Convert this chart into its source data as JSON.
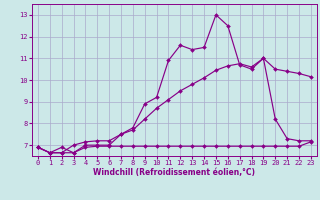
{
  "background_color": "#cce8e8",
  "grid_color": "#aaaacc",
  "line_color": "#880088",
  "xlabel": "Windchill (Refroidissement éolien,°C)",
  "ylim": [
    6.5,
    13.5
  ],
  "xlim": [
    -0.5,
    23.5
  ],
  "yticks": [
    7,
    8,
    9,
    10,
    11,
    12,
    13
  ],
  "xticks": [
    0,
    1,
    2,
    3,
    4,
    5,
    6,
    7,
    8,
    9,
    10,
    11,
    12,
    13,
    14,
    15,
    16,
    17,
    18,
    19,
    20,
    21,
    22,
    23
  ],
  "series1_x": [
    0,
    1,
    2,
    3,
    4,
    5,
    6,
    7,
    8,
    9,
    10,
    11,
    12,
    13,
    14,
    15,
    16,
    17,
    18,
    19,
    20,
    21,
    22,
    23
  ],
  "series1_y": [
    6.9,
    6.65,
    6.9,
    6.65,
    7.0,
    7.0,
    7.0,
    7.5,
    7.8,
    8.9,
    9.2,
    10.9,
    11.6,
    11.4,
    11.5,
    13.0,
    12.5,
    10.7,
    10.5,
    11.0,
    8.2,
    7.3,
    7.2,
    7.2
  ],
  "series2_x": [
    0,
    1,
    2,
    3,
    4,
    5,
    6,
    7,
    8,
    9,
    10,
    11,
    12,
    13,
    14,
    15,
    16,
    17,
    18,
    19,
    20,
    21,
    22,
    23
  ],
  "series2_y": [
    6.9,
    6.65,
    6.65,
    6.65,
    6.9,
    6.95,
    6.95,
    6.95,
    6.95,
    6.95,
    6.95,
    6.95,
    6.95,
    6.95,
    6.95,
    6.95,
    6.95,
    6.95,
    6.95,
    6.95,
    6.95,
    6.95,
    6.95,
    7.15
  ],
  "series3_x": [
    0,
    1,
    2,
    3,
    4,
    5,
    6,
    7,
    8,
    9,
    10,
    11,
    12,
    13,
    14,
    15,
    16,
    17,
    18,
    19,
    20,
    21,
    22,
    23
  ],
  "series3_y": [
    6.9,
    6.65,
    6.65,
    7.0,
    7.15,
    7.2,
    7.2,
    7.5,
    7.7,
    8.2,
    8.7,
    9.1,
    9.5,
    9.8,
    10.1,
    10.45,
    10.65,
    10.75,
    10.6,
    11.0,
    10.5,
    10.4,
    10.3,
    10.15
  ]
}
